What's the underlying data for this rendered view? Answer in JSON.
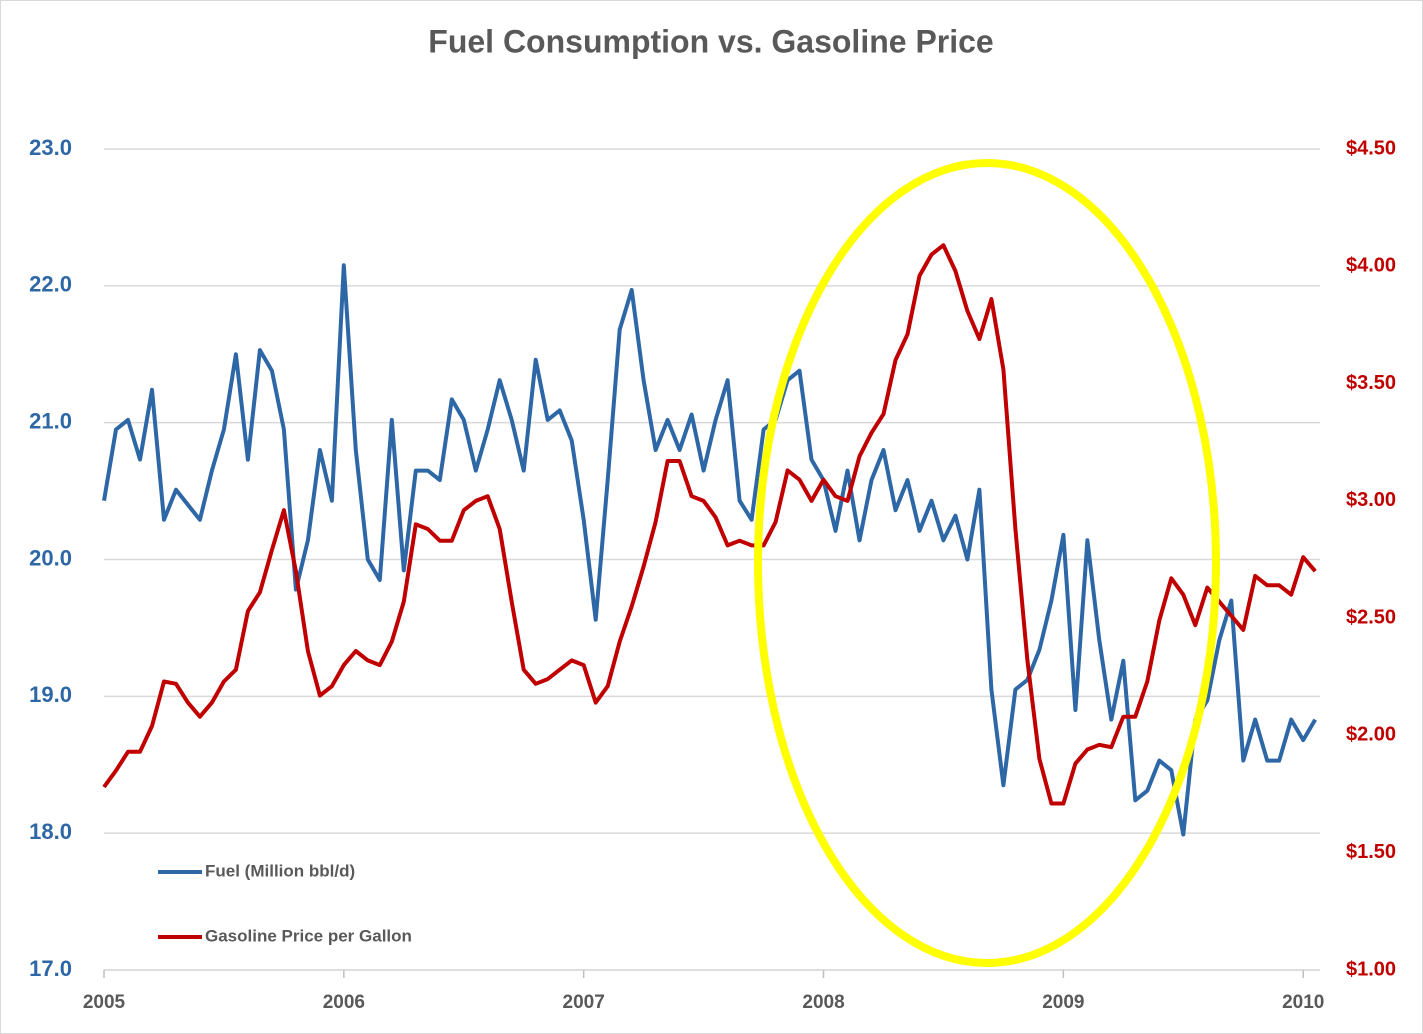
{
  "chart_data": {
    "type": "line",
    "title": "Fuel Consumption vs. Gasoline Price",
    "x": [
      2005,
      2005.05,
      2005.1,
      2005.15,
      2005.2,
      2005.25,
      2005.3,
      2005.35,
      2005.4,
      2005.45,
      2005.5,
      2005.55,
      2005.6,
      2005.65,
      2005.7,
      2005.75,
      2005.8,
      2005.85,
      2005.9,
      2005.95,
      2006,
      2006.05,
      2006.1,
      2006.15,
      2006.2,
      2006.25,
      2006.3,
      2006.35,
      2006.4,
      2006.45,
      2006.5,
      2006.55,
      2006.6,
      2006.65,
      2006.7,
      2006.75,
      2006.8,
      2006.85,
      2006.9,
      2006.95,
      2007,
      2007.05,
      2007.1,
      2007.15,
      2007.2,
      2007.25,
      2007.3,
      2007.35,
      2007.4,
      2007.45,
      2007.5,
      2007.55,
      2007.6,
      2007.65,
      2007.7,
      2007.75,
      2007.8,
      2007.85,
      2007.9,
      2007.95,
      2008,
      2008.05,
      2008.1,
      2008.15,
      2008.2,
      2008.25,
      2008.3,
      2008.35,
      2008.4,
      2008.45,
      2008.5,
      2008.55,
      2008.6,
      2008.65,
      2008.7,
      2008.75,
      2008.8,
      2008.85,
      2008.9,
      2008.95,
      2009,
      2009.05,
      2009.1,
      2009.15,
      2009.2,
      2009.25,
      2009.3,
      2009.35,
      2009.4,
      2009.45,
      2009.5,
      2009.55,
      2009.6,
      2009.65,
      2009.7,
      2009.75,
      2009.8,
      2009.85,
      2009.9,
      2009.95,
      2010,
      2010.05
    ],
    "series": [
      {
        "name": "Fuel (Million bbl/d)",
        "color": "#2e67a6",
        "axis": "y",
        "values": [
          20.43,
          20.95,
          21.02,
          20.73,
          21.24,
          20.29,
          20.51,
          20.4,
          20.29,
          20.65,
          20.95,
          21.5,
          20.73,
          21.53,
          21.38,
          20.95,
          19.78,
          20.14,
          20.8,
          20.43,
          22.15,
          20.8,
          20.0,
          19.85,
          21.02,
          19.92,
          20.65,
          20.65,
          20.58,
          21.17,
          21.02,
          20.65,
          20.95,
          21.31,
          21.02,
          20.65,
          21.46,
          21.02,
          21.09,
          20.87,
          20.29,
          19.56,
          20.58,
          21.68,
          21.97,
          21.31,
          20.8,
          21.02,
          20.8,
          21.06,
          20.65,
          21.02,
          21.31,
          20.43,
          20.29,
          20.95,
          21.02,
          21.31,
          21.38,
          20.73,
          20.58,
          20.21,
          20.65,
          20.14,
          20.58,
          20.8,
          20.36,
          20.58,
          20.21,
          20.43,
          20.14,
          20.32,
          20.0,
          20.51,
          19.05,
          18.35,
          19.05,
          19.12,
          19.34,
          19.7,
          20.18,
          18.9,
          20.14,
          19.41,
          18.83,
          19.26,
          18.24,
          18.31,
          18.53,
          18.46,
          17.99,
          18.83,
          18.97,
          19.41,
          19.7,
          18.53,
          18.83,
          18.53,
          18.53,
          18.83,
          18.68,
          18.83
        ]
      },
      {
        "name": "Gasoline Price per Gallon",
        "color": "#c00000",
        "axis": "y2",
        "values": [
          1.78,
          1.85,
          1.93,
          1.93,
          2.04,
          2.23,
          2.22,
          2.14,
          2.08,
          2.14,
          2.23,
          2.28,
          2.53,
          2.61,
          2.79,
          2.96,
          2.7,
          2.36,
          2.17,
          2.21,
          2.3,
          2.36,
          2.32,
          2.3,
          2.4,
          2.57,
          2.9,
          2.88,
          2.83,
          2.83,
          2.96,
          3.0,
          3.02,
          2.88,
          2.57,
          2.28,
          2.22,
          2.24,
          2.28,
          2.32,
          2.3,
          2.14,
          2.21,
          2.4,
          2.55,
          2.72,
          2.91,
          3.17,
          3.17,
          3.02,
          3.0,
          2.93,
          2.81,
          2.83,
          2.81,
          2.81,
          2.91,
          3.13,
          3.09,
          3.0,
          3.09,
          3.02,
          3.0,
          3.19,
          3.29,
          3.37,
          3.6,
          3.71,
          3.96,
          4.05,
          4.09,
          3.98,
          3.81,
          3.69,
          3.86,
          3.56,
          2.88,
          2.32,
          1.9,
          1.71,
          1.71,
          1.88,
          1.94,
          1.96,
          1.95,
          2.08,
          2.08,
          2.23,
          2.49,
          2.67,
          2.6,
          2.47,
          2.63,
          2.57,
          2.51,
          2.45,
          2.68,
          2.64,
          2.64,
          2.6,
          2.76,
          2.7
        ]
      }
    ],
    "xlim": [
      2005,
      2010.07
    ],
    "xticks": [
      2005,
      2006,
      2007,
      2008,
      2009,
      2010
    ],
    "ylim": [
      17,
      23
    ],
    "yticks": [
      {
        "value": 17,
        "label": "17.0"
      },
      {
        "value": 18,
        "label": "18.0"
      },
      {
        "value": 19,
        "label": "19.0"
      },
      {
        "value": 20,
        "label": "20.0"
      },
      {
        "value": 21,
        "label": "21.0"
      },
      {
        "value": 22,
        "label": "22.0"
      },
      {
        "value": 23,
        "label": "23.0"
      }
    ],
    "y2lim": [
      1,
      4.5
    ],
    "y2ticks": [
      {
        "value": 1,
        "label": "$1.00"
      },
      {
        "value": 1.5,
        "label": "$1.50"
      },
      {
        "value": 2,
        "label": "$2.00"
      },
      {
        "value": 2.5,
        "label": "$2.50"
      },
      {
        "value": 3,
        "label": "$3.00"
      },
      {
        "value": 3.5,
        "label": "$3.50"
      },
      {
        "value": 4,
        "label": "$4.00"
      },
      {
        "value": 4.5,
        "label": "$4.50"
      }
    ],
    "grid": true,
    "legend": "lower-left"
  }
}
